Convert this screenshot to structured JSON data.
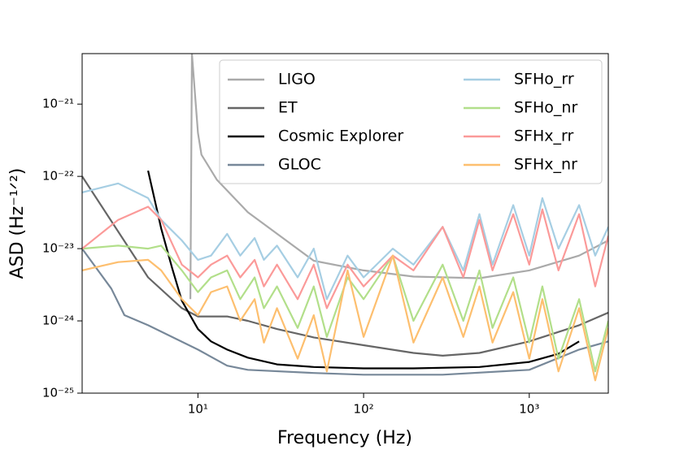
{
  "chart_data": {
    "type": "line",
    "xlabel": "Frequency (Hz)",
    "ylabel": "ASD (Hz⁻¹ᐟ²)",
    "xscale": "log",
    "yscale": "log",
    "xlim": [
      2,
      3000
    ],
    "ylim": [
      1e-25,
      5e-21
    ],
    "xticks": [
      {
        "value": 10,
        "label": "10¹"
      },
      {
        "value": 100,
        "label": "10²"
      },
      {
        "value": 1000,
        "label": "10³"
      }
    ],
    "yticks": [
      {
        "value": 1e-25,
        "label": "10⁻²⁵"
      },
      {
        "value": 1e-24,
        "label": "10⁻²⁴"
      },
      {
        "value": 1e-23,
        "label": "10⁻²³"
      },
      {
        "value": 1e-22,
        "label": "10⁻²²"
      },
      {
        "value": 1e-21,
        "label": "10⁻²¹"
      }
    ],
    "legend": "upper right",
    "legend_columns": 2,
    "series": [
      {
        "name": "LIGO",
        "color": "#aaaaaa",
        "x": [
          9,
          9.2,
          10,
          10.5,
          13,
          20,
          50,
          100,
          200,
          500,
          1000,
          2000,
          3000
        ],
        "values": [
          2e-24,
          5e-21,
          4e-22,
          2e-22,
          9e-23,
          3.2e-23,
          6.8e-24,
          5e-24,
          4.1e-24,
          3.9e-24,
          5e-24,
          8e-24,
          1.3e-23
        ]
      },
      {
        "name": "ET",
        "color": "#666666",
        "x": [
          2,
          5,
          8,
          10,
          15,
          20,
          30,
          50,
          100,
          200,
          300,
          500,
          1000,
          2000,
          3000
        ],
        "values": [
          1e-22,
          4e-24,
          1.5e-24,
          1.15e-24,
          1.15e-24,
          1e-24,
          7.7e-25,
          5.9e-25,
          4.6e-25,
          3.6e-25,
          3.3e-25,
          3.6e-25,
          5.2e-25,
          8.7e-25,
          1.3e-24
        ]
      },
      {
        "name": "Cosmic Explorer",
        "color": "#000000",
        "x": [
          5,
          6,
          7,
          8,
          10,
          12,
          15,
          20,
          30,
          50,
          100,
          200,
          500,
          1000,
          1500,
          2000
        ],
        "values": [
          1.2e-22,
          1.9e-23,
          5.3e-24,
          1.9e-24,
          7.7e-25,
          5.2e-25,
          4e-25,
          3.1e-25,
          2.5e-25,
          2.3e-25,
          2.2e-25,
          2.2e-25,
          2.3e-25,
          2.7e-25,
          3.5e-25,
          5.2e-25
        ]
      },
      {
        "name": "GLOC",
        "color": "#778899",
        "x": [
          2,
          3,
          3.6,
          5,
          10,
          15,
          20,
          50,
          100,
          300,
          1000,
          2000,
          3000
        ],
        "values": [
          1e-23,
          2.8e-24,
          1.2e-24,
          8.7e-25,
          4e-25,
          2.4e-25,
          2.1e-25,
          1.9e-25,
          1.8e-25,
          1.8e-25,
          2.1e-25,
          4e-25,
          5.2e-25
        ]
      },
      {
        "name": "SFHo_rr",
        "color": "#a6cee3",
        "x": [
          2,
          3.3,
          5,
          6,
          8,
          10,
          12,
          15,
          18,
          22,
          25,
          30,
          40,
          50,
          60,
          80,
          100,
          150,
          200,
          300,
          400,
          500,
          600,
          800,
          1000,
          1200,
          1500,
          2000,
          2500,
          3000
        ],
        "values": [
          6e-23,
          8e-23,
          5e-23,
          2.5e-23,
          1.3e-23,
          7e-24,
          8e-24,
          1.6e-23,
          8e-24,
          1.4e-23,
          7e-24,
          1.1e-23,
          4e-24,
          1e-23,
          2e-24,
          8e-24,
          4e-24,
          1e-23,
          6e-24,
          2e-23,
          5e-24,
          3e-23,
          6e-24,
          4e-23,
          8e-24,
          5e-23,
          1e-23,
          4e-23,
          8e-24,
          2e-23
        ]
      },
      {
        "name": "SFHo_nr",
        "color": "#b2df8a",
        "x": [
          2,
          3.3,
          5,
          6,
          8,
          10,
          12,
          15,
          18,
          22,
          25,
          30,
          40,
          50,
          60,
          80,
          100,
          150,
          200,
          300,
          400,
          500,
          600,
          800,
          1000,
          1200,
          1500,
          2000,
          2500,
          3000
        ],
        "values": [
          1e-23,
          1.1e-23,
          1e-23,
          1.1e-23,
          5e-24,
          2.5e-24,
          4e-24,
          5e-24,
          2e-24,
          4e-24,
          1.5e-24,
          3e-24,
          8e-25,
          3e-24,
          6e-25,
          4e-24,
          2e-24,
          8e-24,
          1e-24,
          6e-24,
          1e-24,
          5e-24,
          8e-25,
          4e-24,
          5e-25,
          3e-24,
          3e-25,
          2e-24,
          2e-25,
          1e-24
        ]
      },
      {
        "name": "SFHx_rr",
        "color": "#fb9a99",
        "x": [
          2,
          3.3,
          5,
          6,
          8,
          10,
          12,
          15,
          18,
          22,
          25,
          30,
          40,
          50,
          60,
          80,
          100,
          150,
          200,
          300,
          400,
          500,
          600,
          800,
          1000,
          1200,
          1500,
          2000,
          2500,
          3000
        ],
        "values": [
          1e-23,
          2.5e-23,
          3.8e-23,
          2.5e-23,
          6e-24,
          4e-24,
          6e-24,
          8e-24,
          4e-24,
          7e-24,
          3e-24,
          6e-24,
          2e-24,
          6e-24,
          1.5e-24,
          6e-24,
          3e-24,
          8e-24,
          5e-24,
          2e-23,
          4e-24,
          2.5e-23,
          5e-24,
          3e-23,
          6e-24,
          3.5e-23,
          5e-24,
          3e-23,
          3e-24,
          1.5e-23
        ]
      },
      {
        "name": "SFHx_nr",
        "color": "#fdbf6f",
        "x": [
          2,
          3.3,
          5,
          6,
          8,
          10,
          12,
          15,
          18,
          22,
          25,
          30,
          40,
          50,
          60,
          80,
          100,
          150,
          200,
          300,
          400,
          500,
          600,
          800,
          1000,
          1200,
          1500,
          2000,
          2500,
          3000
        ],
        "values": [
          5e-24,
          6.5e-24,
          7e-24,
          5e-24,
          2e-24,
          1.2e-24,
          2.5e-24,
          3e-24,
          1e-24,
          2e-24,
          5e-25,
          1.5e-24,
          3e-25,
          1.2e-24,
          2e-25,
          5e-24,
          6e-25,
          8e-24,
          5e-25,
          4e-24,
          6e-25,
          3e-24,
          5e-25,
          2.5e-24,
          3e-25,
          2e-24,
          2e-25,
          1.5e-24,
          1.5e-25,
          8e-25
        ]
      }
    ]
  }
}
